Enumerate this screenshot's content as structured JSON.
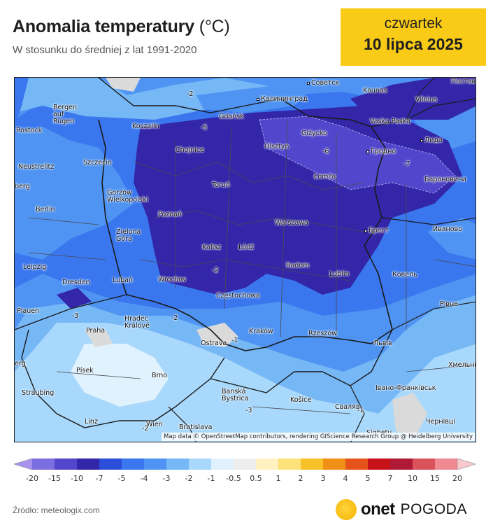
{
  "header": {
    "title": "Anomalia temperatury",
    "unit": "(°C)",
    "subtitle": "W stosunku do średniej z lat 1991-2020"
  },
  "date_box": {
    "day": "czwartek",
    "date": "10 lipca 2025",
    "background": "#f9cb17"
  },
  "map": {
    "attribution": "Map data © OpenStreetMap contributors, rendering GIScience Research Group @ Heidelberg University",
    "cities": [
      {
        "name": "Советск"
      },
      {
        "name": "Калининград"
      },
      {
        "name": "Kaunas"
      },
      {
        "name": "Vilnius"
      },
      {
        "name": "Vaska Paska"
      },
      {
        "name": "Лида"
      },
      {
        "name": "Gdańsk"
      },
      {
        "name": "Giżycko"
      },
      {
        "name": "Olsztyn"
      },
      {
        "name": "Гродно"
      },
      {
        "name": "Bergen auf Rügen"
      },
      {
        "name": "Koszalin"
      },
      {
        "name": "Rostock"
      },
      {
        "name": "Chojnice"
      },
      {
        "name": "Łomża"
      },
      {
        "name": "Барановичи"
      },
      {
        "name": "Neustrelitz"
      },
      {
        "name": "Szczecin"
      },
      {
        "name": "Toruń"
      },
      {
        "name": "Gorzów Wielkopolski"
      },
      {
        "name": "Berlin"
      },
      {
        "name": "Poznań"
      },
      {
        "name": "Warszawa"
      },
      {
        "name": "Брест"
      },
      {
        "name": "Иваново"
      },
      {
        "name": "Zielona Góra"
      },
      {
        "name": "Kalisz"
      },
      {
        "name": "Łódź"
      },
      {
        "name": "Leipzig"
      },
      {
        "name": "Radom"
      },
      {
        "name": "Lublin"
      },
      {
        "name": "Ковель"
      },
      {
        "name": "Dresden"
      },
      {
        "name": "Lubań"
      },
      {
        "name": "Wrocław"
      },
      {
        "name": "Częstochowa"
      },
      {
        "name": "Plauen"
      },
      {
        "name": "Рівне"
      },
      {
        "name": "Hradec Králové"
      },
      {
        "name": "Praha"
      },
      {
        "name": "Kraków"
      },
      {
        "name": "Rzeszów"
      },
      {
        "name": "Львів"
      },
      {
        "name": "Ostrava"
      },
      {
        "name": "Хмельни"
      },
      {
        "name": "Písek"
      },
      {
        "name": "Brno"
      },
      {
        "name": "Banská Bystrica"
      },
      {
        "name": "Košice"
      },
      {
        "name": "Івано-Франківськ"
      },
      {
        "name": "Straubing"
      },
      {
        "name": "Сваляв"
      },
      {
        "name": "Linz"
      },
      {
        "name": "Wien"
      },
      {
        "name": "Bratislava"
      },
      {
        "name": "Sighetu"
      },
      {
        "name": "Чернівці"
      },
      {
        "name": "Постав"
      },
      {
        "name": "berg"
      },
      {
        "name": "erg"
      }
    ],
    "contour_labels": [
      "-2",
      "-5",
      "-6",
      "-7",
      "-3",
      "-2",
      "-2",
      "-1",
      "-1",
      "-3",
      "-2"
    ]
  },
  "legend": {
    "ticks": [
      "-20",
      "-15",
      "-10",
      "-7",
      "-5",
      "-4",
      "-3",
      "-2",
      "-1",
      "-0.5",
      "0.5",
      "1",
      "2",
      "3",
      "4",
      "5",
      "7",
      "10",
      "15",
      "20"
    ],
    "colors": [
      "#a894f0",
      "#7b6ee0",
      "#5247cc",
      "#3326a8",
      "#2b4fd9",
      "#3a77ee",
      "#4f94f2",
      "#76b7f6",
      "#a8d8fb",
      "#dff2fd",
      "#eeeeee",
      "#fff2c0",
      "#fde27a",
      "#f7c12a",
      "#f09016",
      "#e5531a",
      "#c7121a",
      "#b01a36",
      "#d9525c",
      "#ef8a93",
      "#f9c8cd"
    ]
  },
  "footer": {
    "source": "Źródło: meteologix.com",
    "brand": "onet",
    "brand_section": "POGODA"
  }
}
